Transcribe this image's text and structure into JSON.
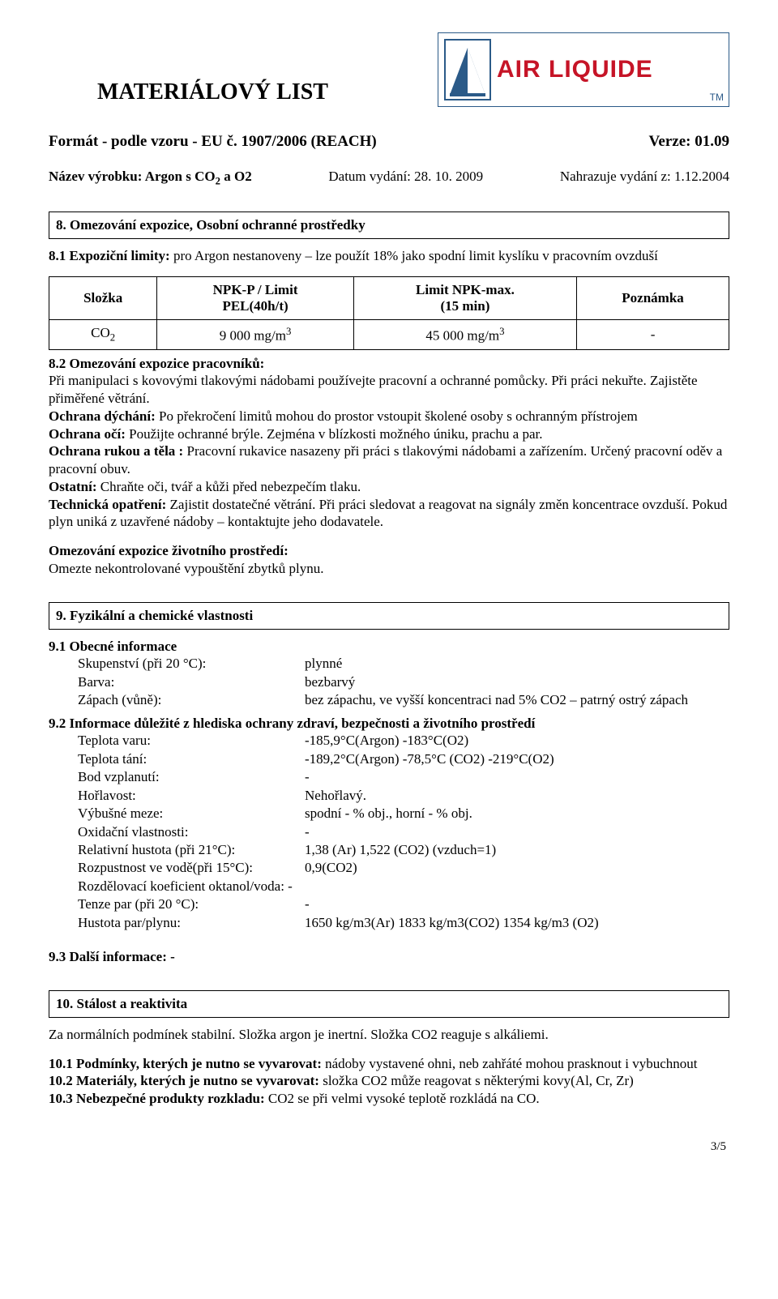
{
  "logo": {
    "brand": "AIR LIQUIDE",
    "tm": "TM",
    "triangle_color": "#2b5a88",
    "brand_color": "#c61427"
  },
  "material_title": "MATERIÁLOVÝ LIST",
  "format_line": "Formát - podle vzoru - EU č. 1907/2006 (REACH)",
  "version_line": "Verze: 01.09",
  "product_name_label": "Název výrobku: Argon s CO",
  "product_sub": "2",
  "product_rest": " a O2",
  "issue_date": "Datum vydání: 28. 10. 2009",
  "replaces": "Nahrazuje vydání z: 1.12.2004",
  "sec8": {
    "title": " 8. Omezování expozice, Osobní ochranné prostředky",
    "p81_label": "8.1 Expoziční limity: ",
    "p81_text": "pro Argon nestanoveny – lze použít 18% jako spodní limit kyslíku v pracovním ovzduší",
    "table": {
      "headers": [
        "Složka",
        "NPK-P / Limit\nPEL(40h/t)",
        "Limit NPK-max.\n(15 min)",
        "Poznámka"
      ],
      "row": {
        "c1_pre": "CO",
        "c1_sub": "2",
        "c2_pre": "9 000 mg/m",
        "c2_sup": "3",
        "c3_pre": "45 000 mg/m",
        "c3_sup": "3",
        "c4": "-"
      }
    },
    "p82_label": "8.2 Omezování expozice pracovníků:",
    "p82_text": "Při manipulaci s kovovými tlakovými nádobami používejte pracovní a ochranné pomůcky. Při práci nekuřte. Zajistěte přiměřené větrání.",
    "breath_label": "Ochrana dýchání: ",
    "breath_text": "Po překročení limitů mohou do prostor vstoupit školené osoby s ochranným přístrojem",
    "eyes_label": "Ochrana očí: ",
    "eyes_text": "Použijte ochranné brýle. Zejména v blízkosti možného úniku, prachu a par.",
    "hands_label": "Ochrana rukou a těla : ",
    "hands_text": "Pracovní rukavice nasazeny při práci s tlakovými nádobami a zařízením. Určený pracovní oděv a pracovní obuv.",
    "other_label": "Ostatní: ",
    "other_text": "Chraňte oči, tvář a kůži před nebezpečím tlaku.",
    "tech_label": "Technická opatření: ",
    "tech_text": "Zajistit dostatečné větrání. Při práci  sledovat a reagovat na signály změn koncentrace ovzduší. Pokud plyn uniká z uzavřené nádoby – kontaktujte jeho dodavatele.",
    "env_label": "Omezování expozice životního prostředí:",
    "env_text": "Omezte nekontrolované vypouštění zbytků plynu."
  },
  "sec9": {
    "title": " 9. Fyzikální a chemické vlastnosti",
    "p91": "9.1   Obecné informace",
    "rows1": [
      {
        "label": "Skupenství (při 20 °C):",
        "value": "plynné"
      },
      {
        "label": "Barva:",
        "value": "bezbarvý"
      },
      {
        "label": "Zápach (vůně):",
        "value": "bez zápachu, ve vyšší koncentraci nad 5% CO2 – patrný ostrý zápach"
      }
    ],
    "p92": "9.2   Informace důležité z hlediska ochrany zdraví, bezpečnosti a životního prostředí",
    "rows2": [
      {
        "label": "Teplota varu:",
        "value": "-185,9°C(Argon)  -183°C(O2)"
      },
      {
        "label": "Teplota tání:",
        "value": "-189,2°C(Argon) -78,5°C (CO2) -219°C(O2)"
      },
      {
        "label": "Bod vzplanutí:",
        "value": "-"
      },
      {
        "label": "Hořlavost:",
        "value": "Nehořlavý."
      },
      {
        "label": "Výbušné meze:",
        "value": "spodní  - % obj., horní  - % obj."
      },
      {
        "label": "Oxidační vlastnosti:",
        "value": "-"
      },
      {
        "label": "Relativní hustota (při 21°C):",
        "value": "1,38 (Ar) 1,522 (CO2) (vzduch=1)"
      },
      {
        "label": "Rozpustnost ve vodě(při 15°C):",
        "value": "0,9(CO2)"
      },
      {
        "label": "Rozdělovací koeficient oktanol/voda: -",
        "value": ""
      },
      {
        "label": "Tenze par (při 20 °C):",
        "value": "-"
      },
      {
        "label": "Hustota par/plynu:",
        "value": "1650 kg/m3(Ar) 1833 kg/m3(CO2) 1354 kg/m3 (O2)"
      }
    ],
    "p93": "9.3   Další informace:    -"
  },
  "sec10": {
    "title": " 10. Stálost a reaktivita",
    "intro": "Za normálních podmínek stabilní. Složka argon je inertní. Složka CO2 reaguje s alkáliemi.",
    "p101_label": "10.1  Podmínky, kterých je nutno se vyvarovat: ",
    "p101_text": "nádoby vystavené ohni, neb zahřáté mohou prasknout i vybuchnout",
    "p102_label": "10.2  Materiály, kterých je nutno se vyvarovat: ",
    "p102_text": "složka CO2 může reagovat s některými kovy(Al, Cr, Zr)",
    "p103_label": "10.3  Nebezpečné produkty rozkladu: ",
    "p103_text": "CO2 se při velmi vysoké teplotě rozkládá na CO."
  },
  "page_num": "3/5"
}
